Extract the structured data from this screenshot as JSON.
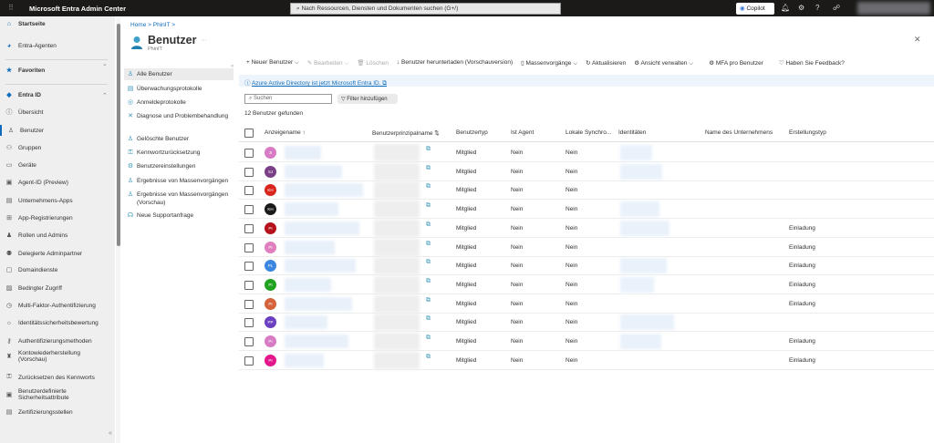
{
  "topbar": {
    "title": "Microsoft Entra Admin Center",
    "search_placeholder": "Nach Ressourcen, Diensten und Dokumenten suchen (G+/)",
    "copilot": "Copilot"
  },
  "nav": {
    "items": [
      {
        "label": "Startseite",
        "icon": "home-icon",
        "bold": true
      },
      {
        "label": "Entra-Agenten",
        "icon": "agent-icon"
      },
      {
        "label": "Favoriten",
        "icon": "star-icon",
        "bold": true
      },
      {
        "label": "Entra ID",
        "icon": "entra-icon",
        "bold": true
      },
      {
        "label": "Übersicht",
        "icon": "info-icon"
      },
      {
        "label": "Benutzer",
        "icon": "user-icon",
        "active": true
      },
      {
        "label": "Gruppen",
        "icon": "group-icon"
      },
      {
        "label": "Geräte",
        "icon": "device-icon"
      },
      {
        "label": "Agent-ID (Preview)",
        "icon": "id-icon"
      },
      {
        "label": "Unternehmens-Apps",
        "icon": "apps-icon"
      },
      {
        "label": "App-Registrierungen",
        "icon": "grid-icon"
      },
      {
        "label": "Rollen und Admins",
        "icon": "roles-icon"
      },
      {
        "label": "Delegierte Adminpartner",
        "icon": "partner-icon"
      },
      {
        "label": "Domaindienste",
        "icon": "domain-icon"
      },
      {
        "label": "Bedingter Zugriff",
        "icon": "lock-icon"
      },
      {
        "label": "Multi-Faktor-Authentifizierung",
        "icon": "mfa-icon"
      },
      {
        "label": "Identitätssicherheitsbewertung",
        "icon": "bulb-icon"
      },
      {
        "label": "Authentifizierungsmethoden",
        "icon": "auth-icon"
      },
      {
        "label": "Kontowiederherstellung (Vorschau)",
        "icon": "recovery-icon"
      },
      {
        "label": "Zurücksetzen des Kennworts",
        "icon": "key-icon"
      },
      {
        "label": "Benutzerdefinierte Sicherheitsattribute",
        "icon": "attr-icon"
      },
      {
        "label": "Zertifizierungsstellen",
        "icon": "cert-icon"
      }
    ]
  },
  "breadcrumb": [
    "Home",
    "PhinIT"
  ],
  "page": {
    "title": "Benutzer",
    "subtitle": "PhinIT"
  },
  "submenu": [
    {
      "label": "Alle Benutzer",
      "icon": "user-icon",
      "active": true
    },
    {
      "label": "Überwachungsprotokolle",
      "icon": "log-icon"
    },
    {
      "label": "Anmeldeprotokolle",
      "icon": "signin-icon"
    },
    {
      "label": "Diagnose und Problembehandlung",
      "icon": "wrench-icon"
    },
    {
      "label": "Gelöschte Benutzer",
      "icon": "deleted-user-icon"
    },
    {
      "label": "Kennwortzurücksetzung",
      "icon": "key-icon"
    },
    {
      "label": "Benutzereinstellungen",
      "icon": "settings-icon"
    },
    {
      "label": "Ergebnisse von Massenvorgängen",
      "icon": "bulk-icon"
    },
    {
      "label": "Ergebnisse von Massenvorgängen (Vorschau)",
      "icon": "bulk-icon"
    },
    {
      "label": "Neue Supportanfrage",
      "icon": "support-icon"
    }
  ],
  "toolbar": [
    "+ Neuer Benutzer ⌵",
    "✎ Bearbeiten ⌵",
    "🗑 Löschen",
    "↓ Benutzer herunterladen (Vorschauversion)",
    "▯ Massenvorgänge ⌵",
    "↻ Aktualisieren",
    "⚙ Ansicht verwalten ⌵",
    "⚙ MFA pro Benutzer",
    "♡ Haben Sie Feedback?"
  ],
  "banner": "Azure Active Directory ist jetzt Microsoft Entra ID. ⧉",
  "search_placeholder": "Suchen",
  "filter": "Filter hinzufügen",
  "count": "12 Benutzer gefunden",
  "columns": [
    "Anzeigename ↑",
    "Benutzerprinzipalname ⇅",
    "Benutzertyp",
    "Ist Agent",
    "Lokale Synchro...",
    "Identitäten",
    "Name des Unternehmens",
    "Erstellungstyp"
  ],
  "rows": [
    {
      "initials": "JI",
      "color": "#d77bc4",
      "type": "Mitglied",
      "agent": "Nein",
      "sync": "Nein",
      "creation": ""
    },
    {
      "initials": "SJ",
      "color": "#7a3f86",
      "type": "Mitglied",
      "agent": "Nein",
      "sync": "Nein",
      "creation": ""
    },
    {
      "initials": "KH",
      "color": "#d9251d",
      "type": "Mitglied",
      "agent": "Nein",
      "sync": "Nein",
      "creation": ""
    },
    {
      "initials": "KH",
      "color": "#1a1a1a",
      "type": "Mitglied",
      "agent": "Nein",
      "sync": "Nein",
      "creation": ""
    },
    {
      "initials": "PI",
      "color": "#b5121b",
      "type": "Mitglied",
      "agent": "Nein",
      "sync": "Nein",
      "creation": "Einladung"
    },
    {
      "initials": "PI",
      "color": "#e07ec0",
      "type": "Mitglied",
      "agent": "Nein",
      "sync": "Nein",
      "creation": "Einladung"
    },
    {
      "initials": "PL",
      "color": "#3b86e0",
      "type": "Mitglied",
      "agent": "Nein",
      "sync": "Nein",
      "creation": "Einladung"
    },
    {
      "initials": "PI",
      "color": "#1fa21f",
      "type": "Mitglied",
      "agent": "Nein",
      "sync": "Nein",
      "creation": "Einladung"
    },
    {
      "initials": "PI",
      "color": "#d5623a",
      "type": "Mitglied",
      "agent": "Nein",
      "sync": "Nein",
      "creation": "Einladung"
    },
    {
      "initials": "PP",
      "color": "#6a3fc0",
      "type": "Mitglied",
      "agent": "Nein",
      "sync": "Nein",
      "creation": ""
    },
    {
      "initials": "PI",
      "color": "#d77bc4",
      "type": "Mitglied",
      "agent": "Nein",
      "sync": "Nein",
      "creation": "Einladung"
    },
    {
      "initials": "PI",
      "color": "#e3168c",
      "type": "Mitglied",
      "agent": "Nein",
      "sync": "Nein",
      "creation": "Einladung"
    }
  ]
}
